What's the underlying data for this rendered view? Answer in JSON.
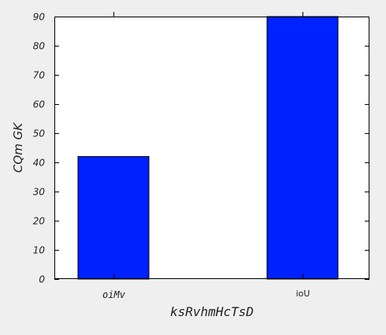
{
  "chart_data": {
    "type": "bar",
    "categories": [
      "oiMv",
      "ioU"
    ],
    "values": [
      42,
      90
    ],
    "xlabel": "ksRvhmHcTsD",
    "ylabel": "CQm GK",
    "ylim": [
      0,
      90
    ],
    "yticks": [
      0,
      10,
      20,
      30,
      40,
      50,
      60,
      70,
      80,
      90
    ],
    "grid": false,
    "bar_color": "#0022ff",
    "plot_background": "#ffffff",
    "figure_background": "#efefef"
  }
}
